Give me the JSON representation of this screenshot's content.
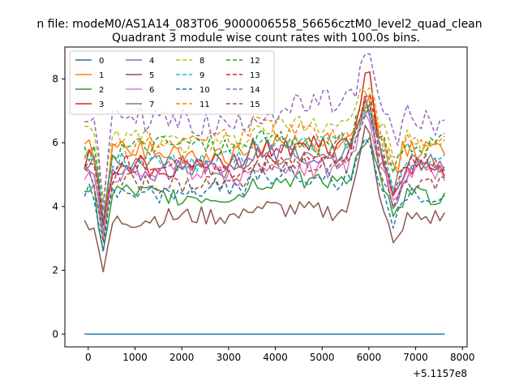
{
  "chart_data": {
    "type": "line",
    "suptitle": "n file: modeM0/AS1A14_083T06_9000006558_56656cztM0_level2_quad_clean",
    "title": "Quadrant 3 module wise count rates with 100.0s bins.",
    "xlabel": "",
    "ylabel": "",
    "x_offset_label": "+5.1157e8",
    "xlim": [
      -500,
      8100
    ],
    "ylim": [
      -0.4,
      9.0
    ],
    "x_ticks": [
      0,
      1000,
      2000,
      3000,
      4000,
      5000,
      6000,
      7000,
      8000
    ],
    "y_ticks": [
      0,
      2,
      4,
      6,
      8
    ],
    "x_tick_labels": [
      "0",
      "1000",
      "2000",
      "3000",
      "4000",
      "5000",
      "6000",
      "7000",
      "8000"
    ],
    "y_tick_labels": [
      "0",
      "2",
      "4",
      "6",
      "8"
    ],
    "x_start": -80,
    "x_step": 100,
    "legend_location": "upper-left",
    "grid": false,
    "series": [
      {
        "name": "0",
        "color": "#1f77b4",
        "style": "solid",
        "mean": 0.0,
        "amp": 0.0,
        "dip": 0.0,
        "peak": 0.0
      },
      {
        "name": "1",
        "color": "#ff7f0e",
        "style": "solid",
        "mean": 5.7,
        "amp": 0.35,
        "dip": 2.3,
        "peak": 1.6
      },
      {
        "name": "2",
        "color": "#2ca02c",
        "style": "solid",
        "mean": 4.4,
        "amp": 0.3,
        "dip": 2.1,
        "peak": 1.6
      },
      {
        "name": "3",
        "color": "#d62728",
        "style": "solid",
        "mean": 5.4,
        "amp": 0.35,
        "dip": 2.1,
        "peak": 2.8
      },
      {
        "name": "4",
        "color": "#9467bd",
        "style": "solid",
        "mean": 5.2,
        "amp": 0.3,
        "dip": 2.0,
        "peak": 2.2
      },
      {
        "name": "5",
        "color": "#8c564b",
        "style": "solid",
        "mean": 3.6,
        "amp": 0.3,
        "dip": 1.8,
        "peak": 3.3
      },
      {
        "name": "6",
        "color": "#e377c2",
        "style": "solid",
        "mean": 5.0,
        "amp": 0.35,
        "dip": 1.9,
        "peak": 2.0
      },
      {
        "name": "7",
        "color": "#7f7f7f",
        "style": "solid",
        "mean": 5.3,
        "amp": 0.3,
        "dip": 2.0,
        "peak": 1.8
      },
      {
        "name": "8",
        "color": "#bcbd22",
        "style": "dashed",
        "mean": 6.1,
        "amp": 0.35,
        "dip": 2.4,
        "peak": 1.7
      },
      {
        "name": "9",
        "color": "#17becf",
        "style": "dashed",
        "mean": 5.5,
        "amp": 0.3,
        "dip": 2.2,
        "peak": 1.6
      },
      {
        "name": "10",
        "color": "#1f77b4",
        "style": "dashed",
        "mean": 4.5,
        "amp": 0.3,
        "dip": 1.9,
        "peak": 1.7
      },
      {
        "name": "11",
        "color": "#ff7f0e",
        "style": "dashed",
        "mean": 6.0,
        "amp": 0.35,
        "dip": 2.3,
        "peak": 1.5
      },
      {
        "name": "12",
        "color": "#2ca02c",
        "style": "dashed",
        "mean": 5.8,
        "amp": 0.35,
        "dip": 2.2,
        "peak": 1.5
      },
      {
        "name": "13",
        "color": "#d62728",
        "style": "dashed",
        "mean": 5.2,
        "amp": 0.3,
        "dip": 2.0,
        "peak": 2.2
      },
      {
        "name": "14",
        "color": "#9467bd",
        "style": "dashed",
        "mean": 6.7,
        "amp": 0.45,
        "dip": 2.6,
        "peak": 1.7
      },
      {
        "name": "15",
        "color": "#8c564b",
        "style": "dashed",
        "mean": 4.8,
        "amp": 0.3,
        "dip": 1.9,
        "peak": 2.3
      }
    ]
  }
}
